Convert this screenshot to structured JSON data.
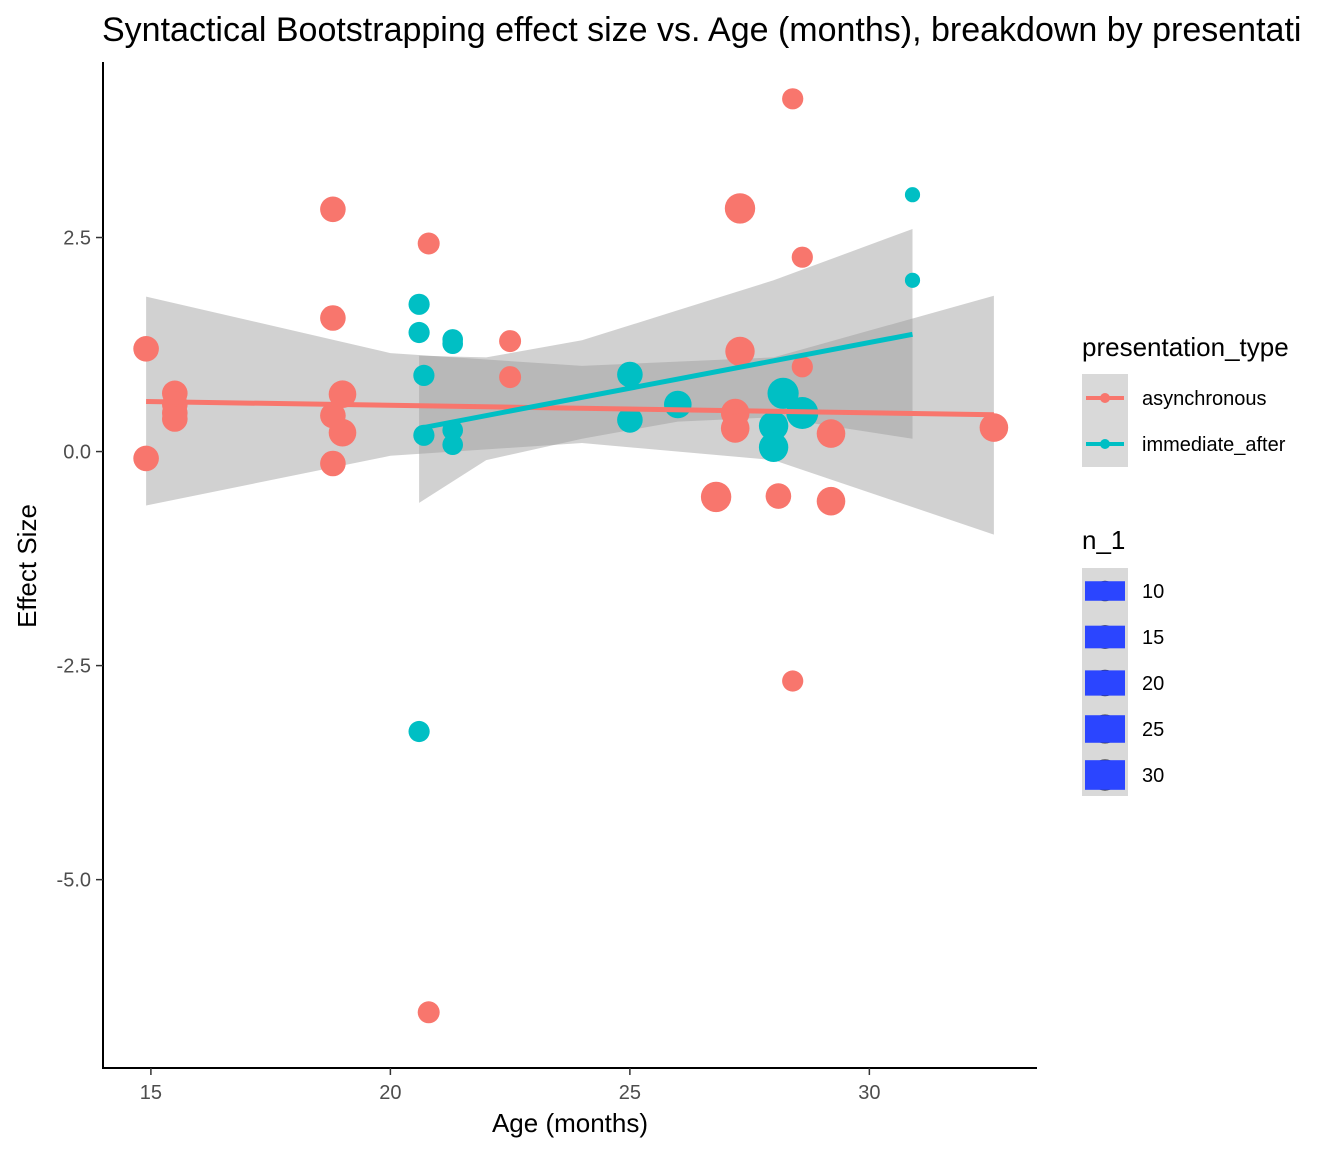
{
  "chart_data": {
    "type": "scatter",
    "title": "Syntactical Bootstrapping effect size vs. Age (months), breakdown by presentati",
    "xlabel": "Age (months)",
    "ylabel": "Effect Size",
    "xlim": [
      14,
      33.5
    ],
    "ylim": [
      -7.2,
      4.55
    ],
    "x_ticks": [
      15,
      20,
      25,
      30
    ],
    "x_tick_labels": [
      "15",
      "20",
      "25",
      "30"
    ],
    "y_ticks": [
      -5.0,
      -2.5,
      0.0,
      2.5
    ],
    "y_tick_labels": [
      "-5.0",
      "-2.5",
      "0.0",
      "2.5"
    ],
    "grid": false,
    "legend_position": "right",
    "series": [
      {
        "name": "asynchronous",
        "color": "#F8766D",
        "points": [
          {
            "x": 14.9,
            "y": 1.2,
            "n": 18
          },
          {
            "x": 14.9,
            "y": -0.08,
            "n": 18
          },
          {
            "x": 15.5,
            "y": 0.68,
            "n": 18
          },
          {
            "x": 15.5,
            "y": 0.55,
            "n": 18
          },
          {
            "x": 15.5,
            "y": 0.45,
            "n": 18
          },
          {
            "x": 15.5,
            "y": 0.38,
            "n": 18
          },
          {
            "x": 18.8,
            "y": 2.83,
            "n": 18
          },
          {
            "x": 18.8,
            "y": 1.56,
            "n": 18
          },
          {
            "x": 18.8,
            "y": 0.42,
            "n": 18
          },
          {
            "x": 18.8,
            "y": -0.14,
            "n": 18
          },
          {
            "x": 19.0,
            "y": 0.67,
            "n": 22
          },
          {
            "x": 19.0,
            "y": 0.22,
            "n": 22
          },
          {
            "x": 20.8,
            "y": 2.43,
            "n": 12
          },
          {
            "x": 20.8,
            "y": -6.55,
            "n": 12
          },
          {
            "x": 22.5,
            "y": 1.29,
            "n": 12
          },
          {
            "x": 22.5,
            "y": 0.87,
            "n": 12
          },
          {
            "x": 26.8,
            "y": -0.53,
            "n": 28
          },
          {
            "x": 27.2,
            "y": 0.45,
            "n": 24
          },
          {
            "x": 27.2,
            "y": 0.27,
            "n": 24
          },
          {
            "x": 27.3,
            "y": 2.84,
            "n": 28
          },
          {
            "x": 27.3,
            "y": 1.17,
            "n": 26
          },
          {
            "x": 28.1,
            "y": -0.52,
            "n": 18
          },
          {
            "x": 28.4,
            "y": 4.12,
            "n": 11
          },
          {
            "x": 28.4,
            "y": -2.68,
            "n": 11
          },
          {
            "x": 28.6,
            "y": 2.27,
            "n": 11
          },
          {
            "x": 28.6,
            "y": 0.99,
            "n": 11
          },
          {
            "x": 29.2,
            "y": 0.21,
            "n": 24
          },
          {
            "x": 29.2,
            "y": -0.58,
            "n": 24
          },
          {
            "x": 32.6,
            "y": 0.28,
            "n": 24
          }
        ],
        "fit": {
          "x": [
            14.9,
            32.6
          ],
          "y": [
            0.585,
            0.43
          ]
        },
        "ci": {
          "x": [
            14.9,
            20.0,
            24.0,
            28.0,
            32.6
          ],
          "lower": [
            -0.63,
            -0.05,
            0.1,
            -0.1,
            -0.97
          ],
          "upper": [
            1.81,
            1.15,
            1.0,
            1.1,
            1.82
          ]
        }
      },
      {
        "name": "immediate_after",
        "color": "#00BFC4",
        "points": [
          {
            "x": 20.6,
            "y": 1.72,
            "n": 11
          },
          {
            "x": 20.6,
            "y": 1.39,
            "n": 11
          },
          {
            "x": 20.6,
            "y": -3.27,
            "n": 11
          },
          {
            "x": 20.7,
            "y": 0.89,
            "n": 11
          },
          {
            "x": 20.7,
            "y": 0.19,
            "n": 11
          },
          {
            "x": 21.3,
            "y": 1.31,
            "n": 10
          },
          {
            "x": 21.3,
            "y": 1.26,
            "n": 10
          },
          {
            "x": 21.3,
            "y": 0.25,
            "n": 10
          },
          {
            "x": 21.3,
            "y": 0.08,
            "n": 10
          },
          {
            "x": 25.0,
            "y": 0.9,
            "n": 18
          },
          {
            "x": 25.0,
            "y": 0.37,
            "n": 18
          },
          {
            "x": 26.0,
            "y": 0.55,
            "n": 22
          },
          {
            "x": 28.0,
            "y": 0.3,
            "n": 26
          },
          {
            "x": 28.0,
            "y": 0.05,
            "n": 26
          },
          {
            "x": 28.2,
            "y": 0.68,
            "n": 30
          },
          {
            "x": 28.6,
            "y": 0.45,
            "n": 32
          },
          {
            "x": 30.9,
            "y": 3.0,
            "n": 4
          },
          {
            "x": 30.9,
            "y": 2.0,
            "n": 4
          }
        ],
        "fit": {
          "x": [
            20.6,
            30.9
          ],
          "y": [
            0.27,
            1.37
          ]
        },
        "ci": {
          "x": [
            20.6,
            22.0,
            24.0,
            26.0,
            28.0,
            30.9
          ],
          "lower": [
            -0.6,
            -0.1,
            0.15,
            0.35,
            0.4,
            0.15
          ],
          "upper": [
            1.12,
            1.1,
            1.3,
            1.65,
            2.0,
            2.6
          ]
        }
      }
    ],
    "legend": {
      "color_title": "presentation_type",
      "color_entries": [
        "asynchronous",
        "immediate_after"
      ],
      "size_title": "n_1",
      "size_entries": [
        "10",
        "15",
        "20",
        "25",
        "30"
      ]
    }
  }
}
